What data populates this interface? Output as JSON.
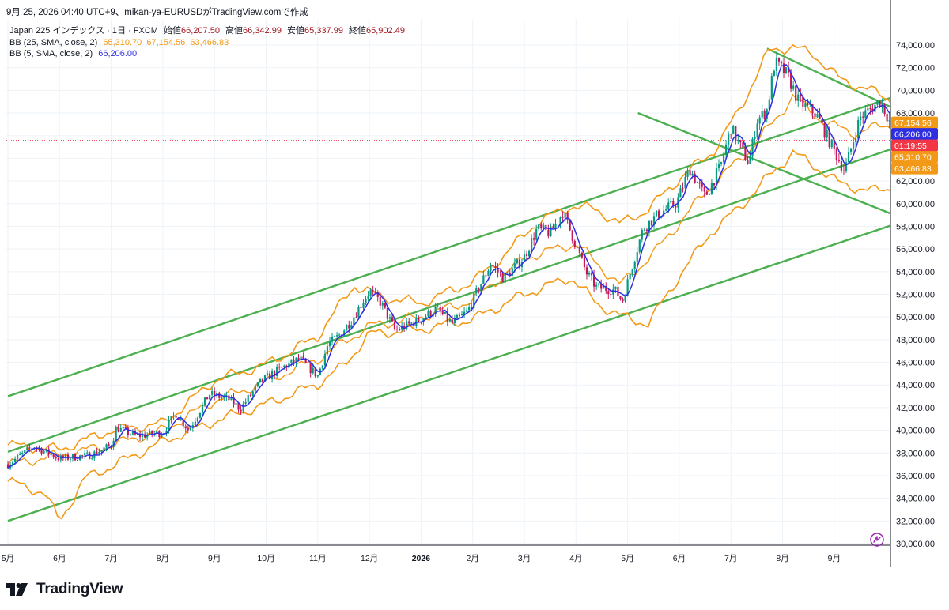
{
  "header": {
    "caption": "9月 25, 2026 04:40 UTC+9、mikan-ya-EURUSDがTradingView.comで作成"
  },
  "legend": {
    "symbol": "Japan 225 インデックス · 1日 · FXCM",
    "ohlc": [
      {
        "key": "始値",
        "value": "66,207.50"
      },
      {
        "key": "高値",
        "value": "66,342.99"
      },
      {
        "key": "安値",
        "value": "65,337.99"
      },
      {
        "key": "終値",
        "value": "65,902.49"
      }
    ],
    "bb25_label": "BB (25, SMA, close, 2)",
    "bb25_values": [
      "65,310.70",
      "67,154.56",
      "63,466.83"
    ],
    "bb5_label": "BB (5, SMA, close, 2)",
    "bb5_value": "66,206.00"
  },
  "brand": {
    "name": "TradingView"
  },
  "colors": {
    "candle_up": "#089981",
    "candle_down": "#c2185b",
    "bb25": "#f29a18",
    "bb5": "#2e2fe0",
    "trendline": "#4caf50",
    "price_tag_current": "#f23645",
    "axis_text": "#131722",
    "grid": "#eef3f8"
  },
  "chart_data": {
    "type": "candlestick",
    "title": "",
    "ylim": [
      30000,
      75000
    ],
    "y_ticks": [
      "74,000.00",
      "72,000.00",
      "70,000.00",
      "68,000.00",
      "66,000.00",
      "64,000.00",
      "62,000.00",
      "60,000.00",
      "58,000.00",
      "56,000.00",
      "54,000.00",
      "52,000.00",
      "50,000.00",
      "48,000.00",
      "46,000.00",
      "44,000.00",
      "42,000.00",
      "40,000.00",
      "38,000.00",
      "36,000.00",
      "34,000.00",
      "32,000.00",
      "30,000.00"
    ],
    "x_ticks": [
      "5月",
      "6月",
      "7月",
      "8月",
      "9月",
      "10月",
      "11月",
      "12月",
      "2026",
      "2月",
      "3月",
      "4月",
      "5月",
      "6月",
      "7月",
      "8月",
      "9月"
    ],
    "grid": true,
    "close_path": [
      [
        0,
        37000
      ],
      [
        0.5,
        38600
      ],
      [
        1,
        37500
      ],
      [
        1.6,
        37800
      ],
      [
        2,
        38700
      ],
      [
        2.1,
        40200
      ],
      [
        2.5,
        39500
      ],
      [
        3,
        39800
      ],
      [
        3.25,
        41500
      ],
      [
        3.5,
        40000
      ],
      [
        3.9,
        43200
      ],
      [
        4.3,
        42700
      ],
      [
        4.5,
        41900
      ],
      [
        4.9,
        44300
      ],
      [
        5.3,
        45500
      ],
      [
        5.65,
        46300
      ],
      [
        6,
        44800
      ],
      [
        6.2,
        47600
      ],
      [
        6.4,
        48300
      ],
      [
        6.65,
        49700
      ],
      [
        7,
        52300
      ],
      [
        7.2,
        51400
      ],
      [
        7.5,
        48800
      ],
      [
        7.9,
        49600
      ],
      [
        8.3,
        50700
      ],
      [
        8.6,
        49400
      ],
      [
        8.9,
        50500
      ],
      [
        9.1,
        52400
      ],
      [
        9.35,
        54700
      ],
      [
        9.6,
        53400
      ],
      [
        10,
        55300
      ],
      [
        10.25,
        57800
      ],
      [
        10.5,
        57400
      ],
      [
        10.75,
        59300
      ],
      [
        10.9,
        57500
      ],
      [
        11.2,
        53900
      ],
      [
        11.4,
        52600
      ],
      [
        11.75,
        52400
      ],
      [
        11.9,
        51400
      ],
      [
        12.1,
        54700
      ],
      [
        12.3,
        57800
      ],
      [
        12.6,
        59100
      ],
      [
        12.95,
        60100
      ],
      [
        13.2,
        63100
      ],
      [
        13.5,
        60600
      ],
      [
        13.8,
        63300
      ],
      [
        14,
        66700
      ],
      [
        14.35,
        63500
      ],
      [
        14.5,
        67300
      ],
      [
        14.7,
        68300
      ],
      [
        14.85,
        72500
      ],
      [
        15.1,
        71300
      ],
      [
        15.3,
        69100
      ],
      [
        15.65,
        67900
      ],
      [
        15.9,
        65600
      ],
      [
        16.2,
        62900
      ],
      [
        16.5,
        67600
      ],
      [
        16.9,
        69100
      ],
      [
        17.1,
        67000
      ],
      [
        17.4,
        66600
      ],
      [
        17.55,
        65800
      ],
      [
        17.75,
        64900
      ],
      [
        18.1,
        63400
      ],
      [
        18.3,
        64300
      ],
      [
        18.45,
        66206
      ]
    ],
    "bb25_mid_path": [
      [
        0,
        37000
      ],
      [
        1,
        37800
      ],
      [
        2,
        38700
      ],
      [
        3,
        40000
      ],
      [
        4,
        42600
      ],
      [
        5,
        44300
      ],
      [
        6,
        46300
      ],
      [
        7,
        49200
      ],
      [
        8,
        50000
      ],
      [
        9,
        51500
      ],
      [
        10,
        55200
      ],
      [
        11,
        56500
      ],
      [
        11.85,
        52800
      ],
      [
        12.5,
        55600
      ],
      [
        13.5,
        61000
      ],
      [
        14.5,
        65400
      ],
      [
        15.2,
        69400
      ],
      [
        15.8,
        67200
      ],
      [
        16.4,
        66200
      ],
      [
        17,
        67000
      ],
      [
        17.6,
        66200
      ],
      [
        18.2,
        66500
      ],
      [
        18.4,
        65310
      ]
    ],
    "bb25_upper_path": [
      [
        0,
        38700
      ],
      [
        1,
        38300
      ],
      [
        2,
        40000
      ],
      [
        3,
        40600
      ],
      [
        4,
        44400
      ],
      [
        5,
        45800
      ],
      [
        6,
        48300
      ],
      [
        6.7,
        52800
      ],
      [
        7.2,
        51800
      ],
      [
        8,
        51200
      ],
      [
        9,
        53100
      ],
      [
        9.6,
        55400
      ],
      [
        10.2,
        58200
      ],
      [
        10.9,
        59800
      ],
      [
        11.4,
        59500
      ],
      [
        11.85,
        58200
      ],
      [
        12.4,
        59500
      ],
      [
        13,
        62200
      ],
      [
        13.7,
        64800
      ],
      [
        14.2,
        68600
      ],
      [
        14.75,
        73600
      ],
      [
        15.2,
        73800
      ],
      [
        15.6,
        73200
      ],
      [
        16.1,
        71000
      ],
      [
        16.7,
        70000
      ],
      [
        17.2,
        69000
      ],
      [
        17.6,
        68500
      ],
      [
        18.2,
        67600
      ],
      [
        18.4,
        67154
      ]
    ],
    "bb25_lower_path": [
      [
        0,
        35500
      ],
      [
        0.7,
        34500
      ],
      [
        1,
        32000
      ],
      [
        1.5,
        35800
      ],
      [
        2,
        36800
      ],
      [
        3,
        39000
      ],
      [
        4,
        40800
      ],
      [
        5,
        42300
      ],
      [
        6,
        44100
      ],
      [
        6.5,
        45700
      ],
      [
        7,
        48500
      ],
      [
        8,
        48900
      ],
      [
        9,
        49800
      ],
      [
        10,
        52000
      ],
      [
        10.9,
        53500
      ],
      [
        11.4,
        51200
      ],
      [
        11.85,
        50100
      ],
      [
        12.4,
        49400
      ],
      [
        13,
        53600
      ],
      [
        13.6,
        57400
      ],
      [
        14.2,
        59800
      ],
      [
        14.75,
        62500
      ],
      [
        15.2,
        64500
      ],
      [
        15.7,
        63100
      ],
      [
        16.1,
        61800
      ],
      [
        16.7,
        61100
      ],
      [
        17.2,
        61500
      ],
      [
        17.6,
        62200
      ],
      [
        18.1,
        62700
      ],
      [
        18.4,
        63466
      ]
    ],
    "trendlines": [
      {
        "start": [
          0,
          43000
        ],
        "end": [
          18.82,
          72000
        ]
      },
      {
        "start": [
          0,
          38100
        ],
        "end": [
          18.82,
          67500
        ]
      },
      {
        "start": [
          0,
          32000
        ],
        "end": [
          18.82,
          60700
        ]
      },
      {
        "start": [
          14.7,
          73700
        ],
        "end": [
          18.82,
          64800
        ]
      },
      {
        "start": [
          12.2,
          68000
        ],
        "end": [
          18.82,
          56000
        ]
      }
    ],
    "price_tags": [
      {
        "label": "67,154.56",
        "value": 67154.56,
        "color": "#f29a18"
      },
      {
        "label": "66,206.00",
        "value": 66206.0,
        "color": "#2e2fe0"
      },
      {
        "label": "01:19:55",
        "value": 65602,
        "color": "#f23645"
      },
      {
        "label": "65,310.70",
        "value": 65310.7,
        "color": "#f29a18"
      },
      {
        "label": "63,466.83",
        "value": 63466.83,
        "color": "#f29a18"
      }
    ]
  }
}
